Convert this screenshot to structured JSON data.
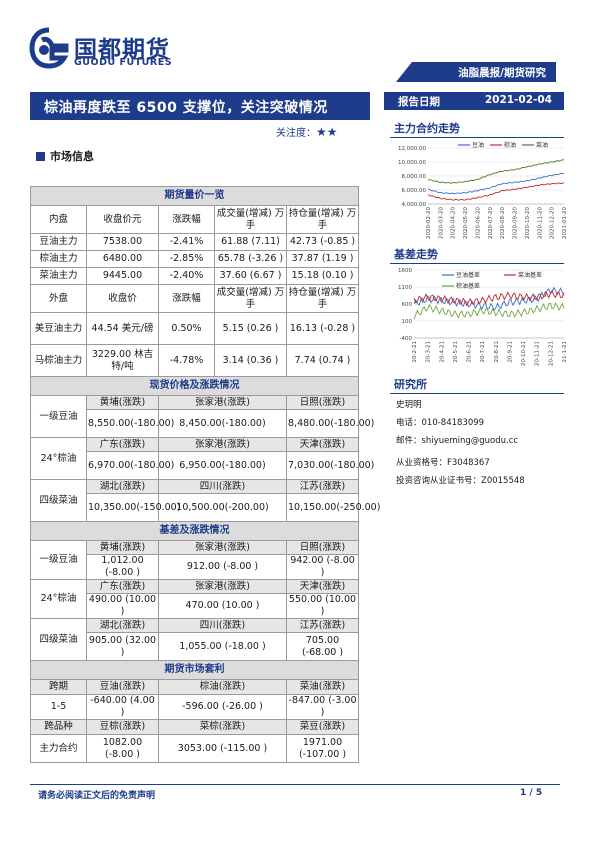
{
  "header": {
    "logo_cn": "国都期货",
    "logo_en": "GUODU FUTURES",
    "section_tag": "油脂晨报/期货研究",
    "title": "棕油再度跌至 6500 支撑位，关注突破情况",
    "focus_label": "关注度：",
    "focus_stars": "★★",
    "report_label": "报告日期",
    "report_date": "2021-02-04"
  },
  "market_info": "市场信息",
  "table": {
    "futures_title": "期货量价一览",
    "domestic": {
      "headers": [
        "内盘",
        "收盘价元",
        "涨跌幅",
        "成交量(增减) 万手",
        "持仓量(增减) 万手"
      ],
      "rows": [
        {
          "name": "豆油主力",
          "close": "7538.00",
          "chg": "-2.41%",
          "vol": "61.88 (7.11)",
          "oi": "42.73 (-0.85 )"
        },
        {
          "name": "棕油主力",
          "close": "6480.00",
          "chg": "-2.85%",
          "vol": "65.78 (-3.26 )",
          "oi": "37.87 (1.19 )"
        },
        {
          "name": "菜油主力",
          "close": "9445.00",
          "chg": "-2.40%",
          "vol": "37.60 (6.67 )",
          "oi": "15.18 (0.10 )"
        }
      ]
    },
    "foreign": {
      "headers": [
        "外盘",
        "收盘价",
        "涨跌幅",
        "成交量(增减) 万手",
        "持仓量(增减) 万手"
      ],
      "rows": [
        {
          "name": "美豆油主力",
          "close": "44.54 美元/磅",
          "chg": "0.50%",
          "vol": "5.15 (0.26 )",
          "oi": "16.13 (-0.28 )"
        },
        {
          "name": "马棕油主力",
          "close": "3229.00 林吉特/吨",
          "chg": "-4.78%",
          "vol": "3.14 (0.36 )",
          "oi": "7.74 (0.74 )"
        }
      ]
    },
    "spot_title": "现货价格及涨跌情况",
    "spot": [
      {
        "name": "一级豆油",
        "places": [
          "黄埔(涨跌)",
          "张家港(涨跌)",
          "日照(涨跌)"
        ],
        "values": [
          "8,550.00(-180.00)",
          "8,450.00(-180.00)",
          "8,480.00(-180.00)"
        ]
      },
      {
        "name": "24°棕油",
        "places": [
          "广东(涨跌)",
          "张家港(涨跌)",
          "天津(涨跌)"
        ],
        "values": [
          "6,970.00(-180.00)",
          "6,950.00(-180.00)",
          "7,030.00(-180.00)"
        ]
      },
      {
        "name": "四级菜油",
        "places": [
          "湖北(涨跌)",
          "四川(涨跌)",
          "江苏(涨跌)"
        ],
        "values": [
          "10,350.00(-150.00)",
          "10,500.00(-200.00)",
          "10,150.00(-250.00)"
        ]
      }
    ],
    "basis_title": "基差及涨跌情况",
    "basis": [
      {
        "name": "一级豆油",
        "places": [
          "黄埔(涨跌)",
          "张家港(涨跌)",
          "日照(涨跌)"
        ],
        "values": [
          "1,012.00 (-8.00 )",
          "912.00 (-8.00 )",
          "942.00 (-8.00 )"
        ]
      },
      {
        "name": "24°棕油",
        "places": [
          "广东(涨跌)",
          "张家港(涨跌)",
          "天津(涨跌)"
        ],
        "values": [
          "490.00 (10.00 )",
          "470.00 (10.00 )",
          "550.00 (10.00 )"
        ]
      },
      {
        "name": "四级菜油",
        "places": [
          "湖北(涨跌)",
          "四川(涨跌)",
          "江苏(涨跌)"
        ],
        "values": [
          "905.00 (32.00 )",
          "1,055.00 (-18.00 )",
          "705.00 (-68.00 )"
        ]
      }
    ],
    "arb_title": "期货市场套利",
    "arb_row1": {
      "label": "跨期",
      "cols": [
        "豆油(涨跌)",
        "棕油(涨跌)",
        "菜油(涨跌)"
      ]
    },
    "arb_row2": {
      "label": "1-5",
      "values": [
        "-640.00 (4.00 )",
        "-596.00 (-26.00 )",
        "-847.00 (-3.00 )"
      ]
    },
    "arb_row3": {
      "label": "跨品种",
      "cols": [
        "豆棕(涨跌)",
        "菜棕(涨跌)",
        "菜豆(涨跌)"
      ]
    },
    "arb_row4": {
      "label": "主力合约",
      "values": [
        "1082.00 (-8.00 )",
        "3053.00 (-115.00 )",
        "1971.00 (-107.00 )"
      ]
    }
  },
  "sidebar": {
    "chart1_title": "主力合约走势",
    "chart2_title": "基差走势",
    "research_title": "研究所",
    "name": "史玥明",
    "phone": "电话：010-84183099",
    "email": "邮件：shiyueming@guodu.cc",
    "cert": "从业资格号：F3048367",
    "advisor": "投资咨询从业证书号：Z0015548"
  },
  "chart_data": [
    {
      "type": "line",
      "title": "主力合约走势",
      "x": [
        "2020-02-20",
        "2020-03-20",
        "2020-04-20",
        "2020-05-20",
        "2020-06-20",
        "2020-07-20",
        "2020-08-20",
        "2020-09-20",
        "2020-10-20",
        "2020-11-20",
        "2020-12-20",
        "2021-01-20"
      ],
      "ylim": [
        4000,
        12000
      ],
      "yticks": [
        "4,000.00",
        "6,000.00",
        "8,000.00",
        "10,000.00",
        "12,000.00"
      ],
      "series": [
        {
          "name": "豆油",
          "color": "#3a6fc4",
          "values": [
            6100,
            5600,
            5500,
            5600,
            5900,
            6300,
            6900,
            7100,
            7300,
            7700,
            8100,
            8400
          ]
        },
        {
          "name": "棕油",
          "color": "#c0282d",
          "values": [
            5300,
            4800,
            4600,
            4600,
            4900,
            5300,
            5900,
            6100,
            6400,
            6700,
            6900,
            7000
          ]
        },
        {
          "name": "菜油",
          "color": "#4f7a2a",
          "values": [
            7500,
            7100,
            7000,
            7200,
            7500,
            8200,
            8700,
            8900,
            9300,
            9700,
            10000,
            10300
          ]
        }
      ]
    },
    {
      "type": "line",
      "title": "基差走势",
      "x": [
        "20-2-21",
        "20-3-21",
        "20-4-21",
        "20-5-21",
        "20-6-21",
        "20-7-21",
        "20-8-21",
        "20-9-21",
        "20-10-21",
        "20-11-21",
        "20-12-21",
        "21-1-21"
      ],
      "ylim": [
        -400,
        1600
      ],
      "yticks": [
        "-400",
        "100",
        "600",
        "1100",
        "1600"
      ],
      "series": [
        {
          "name": "豆油基差",
          "color": "#3a6fc4",
          "values": [
            600,
            750,
            700,
            650,
            600,
            550,
            500,
            650,
            700,
            750,
            1000,
            950
          ]
        },
        {
          "name": "菜油基差",
          "color": "#c0282d",
          "values": [
            700,
            800,
            750,
            700,
            650,
            700,
            800,
            850,
            800,
            800,
            900,
            850
          ]
        },
        {
          "name": "棕油基差",
          "color": "#6fa54a",
          "values": [
            250,
            500,
            400,
            300,
            300,
            400,
            350,
            300,
            350,
            450,
            550,
            500
          ]
        }
      ]
    }
  ],
  "footer": {
    "disclaimer": "请务必阅读正文后的免责声明",
    "page": "1 / 5"
  },
  "colors": {
    "brand": "#1e3c8c",
    "section_bg": "#dcdcdc"
  }
}
